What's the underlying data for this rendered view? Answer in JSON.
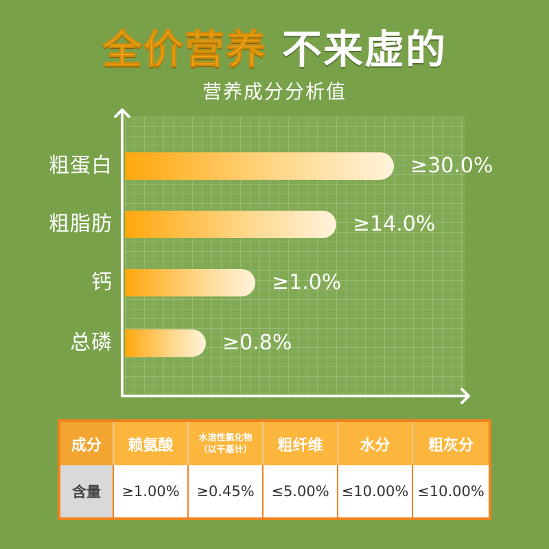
{
  "header": {
    "title_highlight": "全价营养",
    "title_rest": "不来虚的",
    "subtitle": "营养成分分析值"
  },
  "chart_data": {
    "type": "bar",
    "orientation": "horizontal",
    "title": "营养成分分析值",
    "categories": [
      "粗蛋白",
      "粗脂肪",
      "钙",
      "总磷"
    ],
    "values": [
      30.0,
      14.0,
      1.0,
      0.8
    ],
    "value_labels": [
      "≥30.0%",
      "≥14.0%",
      "≥1.0%",
      "≥0.8%"
    ],
    "grid": true,
    "colors": {
      "bar_start": "#ffa70d",
      "bar_end": "#fff3dc"
    }
  },
  "table": {
    "row_header_label": "成分",
    "row_value_label": "含量",
    "columns": [
      {
        "name": "赖氨酸",
        "value": "≥1.00%"
      },
      {
        "name": "水溶性氯化物",
        "note": "（以干基计）",
        "value": "≥0.45%"
      },
      {
        "name": "粗纤维",
        "value": "≤5.00%"
      },
      {
        "name": "水分",
        "value": "≤10.00%"
      },
      {
        "name": "粗灰分",
        "value": "≤10.00%"
      }
    ]
  },
  "colors": {
    "background": "#78a14a",
    "accent": "#f6a81c",
    "table_border": "#f2821e",
    "table_header": "#fcb63d"
  }
}
